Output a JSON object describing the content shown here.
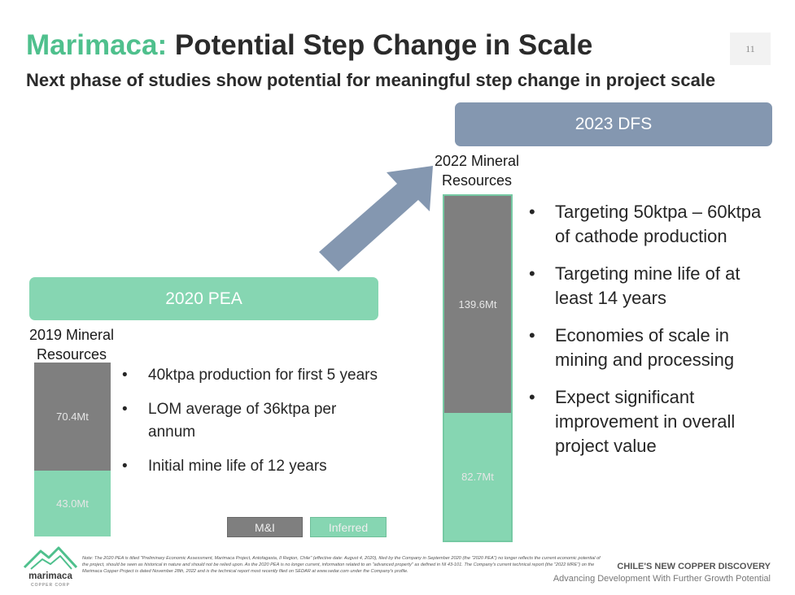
{
  "header": {
    "title_brand": "Marimaca:",
    "title_rest": "Potential Step Change in Scale",
    "subtitle": "Next phase of studies show potential for meaningful step change in project scale",
    "page_number": "11"
  },
  "banners": {
    "pea": "2020 PEA",
    "dfs": "2023 DFS"
  },
  "colors": {
    "accent": "#4fc08d",
    "inferred": "#86d6b2",
    "measured_indicated": "#7f7f7f",
    "dfs_banner": "#8497b0",
    "arrow": "#8497b0"
  },
  "chart_data": {
    "type": "bar",
    "stacked": true,
    "categories": [
      "2019 Mineral Resources",
      "2022 Mineral Resources"
    ],
    "units": "Mt",
    "series": [
      {
        "name": "M&I",
        "values": [
          70.4,
          139.6
        ],
        "labels": [
          "70.4Mt",
          "139.6Mt"
        ],
        "color": "#7f7f7f"
      },
      {
        "name": "Inferred",
        "values": [
          43.0,
          82.7
        ],
        "labels": [
          "43.0Mt",
          "82.7Mt"
        ],
        "color": "#86d6b2"
      }
    ],
    "legend": [
      "M&I",
      "Inferred"
    ]
  },
  "bullets_pea": [
    "40ktpa production for first 5 years",
    "LOM average of 36ktpa per annum",
    "Initial mine life of 12 years"
  ],
  "bullets_dfs": [
    "Targeting 50ktpa – 60ktpa of cathode production",
    "Targeting mine life of at least 14 years",
    "Economies of scale in mining and processing",
    "Expect significant improvement in overall project value"
  ],
  "footer": {
    "note": "Note: The 2020 PEA is titled \"Preliminary Economic Assessment, Marimaca Project, Antofagasta, II Region, Chile\" (effective date: August 4, 2020), filed by the Company in September 2020 (the \"2020 PEA\") no longer reflects the current economic potential of the project, should be seen as historical in nature and should not be relied upon. As the 2020 PEA is no longer current, information related to an \"advanced property\" as defined in NI 43-101. The Company's current technical report (the \"2022 MRE\") on the Marimaca Copper Project is dated November 28th, 2022 and is the technical report most recently filed on SEDAR at www.sedar.com under the Company's profile.",
    "tagline": "CHILE'S NEW COPPER DISCOVERY",
    "sub_tagline": "Advancing Development With Further Growth Potential",
    "logo_text": "marimaca",
    "logo_sub": "COPPER CORP"
  }
}
